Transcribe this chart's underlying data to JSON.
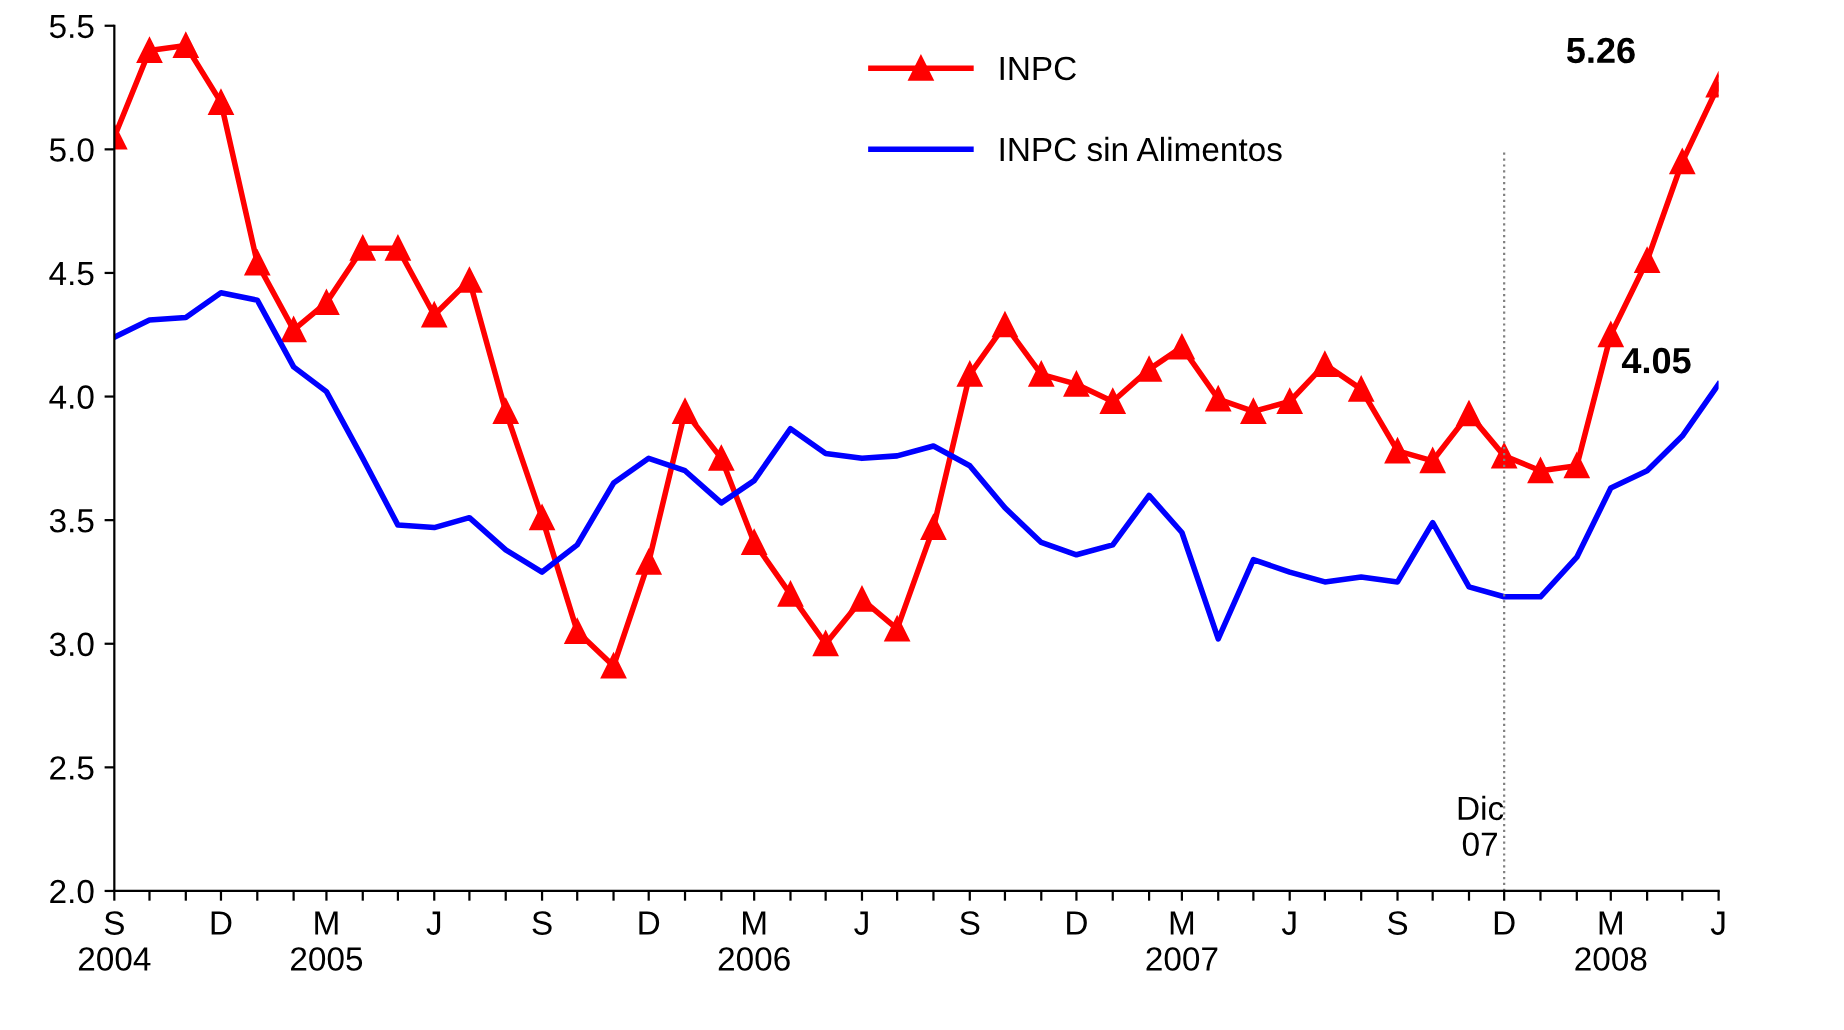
{
  "chart_data": {
    "type": "line",
    "x": [
      "2004-09",
      "2004-10",
      "2004-11",
      "2004-12",
      "2005-01",
      "2005-02",
      "2005-03",
      "2005-04",
      "2005-05",
      "2005-06",
      "2005-07",
      "2005-08",
      "2005-09",
      "2005-10",
      "2005-11",
      "2005-12",
      "2006-01",
      "2006-02",
      "2006-03",
      "2006-04",
      "2006-05",
      "2006-06",
      "2006-07",
      "2006-08",
      "2006-09",
      "2006-10",
      "2006-11",
      "2006-12",
      "2007-01",
      "2007-02",
      "2007-03",
      "2007-04",
      "2007-05",
      "2007-06",
      "2007-07",
      "2007-08",
      "2007-09",
      "2007-10",
      "2007-11",
      "2007-12",
      "2008-01",
      "2008-02",
      "2008-03",
      "2008-04",
      "2008-05",
      "2008-06"
    ],
    "series": [
      {
        "name": "INPC",
        "color": "#ff0000",
        "marker": "triangle",
        "values": [
          5.05,
          5.4,
          5.42,
          5.19,
          4.54,
          4.27,
          4.38,
          4.6,
          4.6,
          4.33,
          4.47,
          3.94,
          3.51,
          3.05,
          2.91,
          3.33,
          3.94,
          3.75,
          3.41,
          3.2,
          3.0,
          3.18,
          3.06,
          3.47,
          4.09,
          4.29,
          4.09,
          4.05,
          3.98,
          4.11,
          4.2,
          3.99,
          3.94,
          3.98,
          4.13,
          4.03,
          3.78,
          3.74,
          3.93,
          3.76,
          3.7,
          3.72,
          4.25,
          4.55,
          4.95,
          5.26
        ]
      },
      {
        "name": "INPC sin Alimentos",
        "color": "#0000ff",
        "marker": "none",
        "values": [
          4.24,
          4.31,
          4.32,
          4.42,
          4.39,
          4.12,
          4.02,
          3.75,
          3.48,
          3.47,
          3.51,
          3.38,
          3.29,
          3.4,
          3.65,
          3.75,
          3.7,
          3.57,
          3.66,
          3.87,
          3.77,
          3.75,
          3.76,
          3.8,
          3.72,
          3.55,
          3.41,
          3.36,
          3.4,
          3.6,
          3.45,
          3.02,
          3.34,
          3.29,
          3.25,
          3.27,
          3.25,
          3.49,
          3.23,
          3.19,
          3.19,
          3.35,
          3.63,
          3.7,
          3.84,
          4.05
        ]
      }
    ],
    "ylim": [
      2.0,
      5.5
    ],
    "yticks": [
      {
        "value": 2.0,
        "label": "2.0"
      },
      {
        "value": 2.5,
        "label": "2.5"
      },
      {
        "value": 3.0,
        "label": "3.0"
      },
      {
        "value": 3.5,
        "label": "3.5"
      },
      {
        "value": 4.0,
        "label": "4.0"
      },
      {
        "value": 4.5,
        "label": "4.5"
      },
      {
        "value": 5.0,
        "label": "5.0"
      },
      {
        "value": 5.5,
        "label": "5.5"
      }
    ],
    "xlim": [
      "2004-09",
      "2008-06"
    ],
    "xticks": [
      {
        "value": "2004-09",
        "label": "S\n2004"
      },
      {
        "value": "2004-10",
        "label": null
      },
      {
        "value": "2004-11",
        "label": null
      },
      {
        "value": "2004-12",
        "label": "D"
      },
      {
        "value": "2005-01",
        "label": null
      },
      {
        "value": "2005-02",
        "label": null
      },
      {
        "value": "2005-03",
        "label": "M\n2005"
      },
      {
        "value": "2005-04",
        "label": null
      },
      {
        "value": "2005-05",
        "label": null
      },
      {
        "value": "2005-06",
        "label": "J"
      },
      {
        "value": "2005-07",
        "label": null
      },
      {
        "value": "2005-08",
        "label": null
      },
      {
        "value": "2005-09",
        "label": "S"
      },
      {
        "value": "2005-10",
        "label": null
      },
      {
        "value": "2005-11",
        "label": null
      },
      {
        "value": "2005-12",
        "label": "D"
      },
      {
        "value": "2006-01",
        "label": null
      },
      {
        "value": "2006-02",
        "label": null
      },
      {
        "value": "2006-03",
        "label": "M\n2006"
      },
      {
        "value": "2006-04",
        "label": null
      },
      {
        "value": "2006-05",
        "label": null
      },
      {
        "value": "2006-06",
        "label": "J"
      },
      {
        "value": "2006-07",
        "label": null
      },
      {
        "value": "2006-08",
        "label": null
      },
      {
        "value": "2006-09",
        "label": "S"
      },
      {
        "value": "2006-10",
        "label": null
      },
      {
        "value": "2006-11",
        "label": null
      },
      {
        "value": "2006-12",
        "label": "D"
      },
      {
        "value": "2007-01",
        "label": null
      },
      {
        "value": "2007-02",
        "label": null
      },
      {
        "value": "2007-03",
        "label": "M\n2007"
      },
      {
        "value": "2007-04",
        "label": null
      },
      {
        "value": "2007-05",
        "label": null
      },
      {
        "value": "2007-06",
        "label": "J"
      },
      {
        "value": "2007-07",
        "label": null
      },
      {
        "value": "2007-08",
        "label": null
      },
      {
        "value": "2007-09",
        "label": "S"
      },
      {
        "value": "2007-10",
        "label": null
      },
      {
        "value": "2007-11",
        "label": null
      },
      {
        "value": "2007-12",
        "label": "D"
      },
      {
        "value": "2008-01",
        "label": null
      },
      {
        "value": "2008-02",
        "label": null
      },
      {
        "value": "2008-03",
        "label": "M\n2008"
      },
      {
        "value": "2008-04",
        "label": null
      },
      {
        "value": "2008-05",
        "label": null
      },
      {
        "value": "2008-06",
        "label": "J"
      }
    ],
    "ref_lines": [
      {
        "axis": "x",
        "value": "2007-12",
        "label": "Dic\n07",
        "color": "#808080",
        "line_style": "dotted"
      }
    ],
    "annotations": [
      {
        "text": "5.26",
        "x": "2008-06",
        "y": 5.26
      },
      {
        "text": "4.05",
        "x": "2008-06",
        "y": 4.05
      }
    ],
    "legend": "top",
    "grid": false,
    "line_style": "solid"
  }
}
